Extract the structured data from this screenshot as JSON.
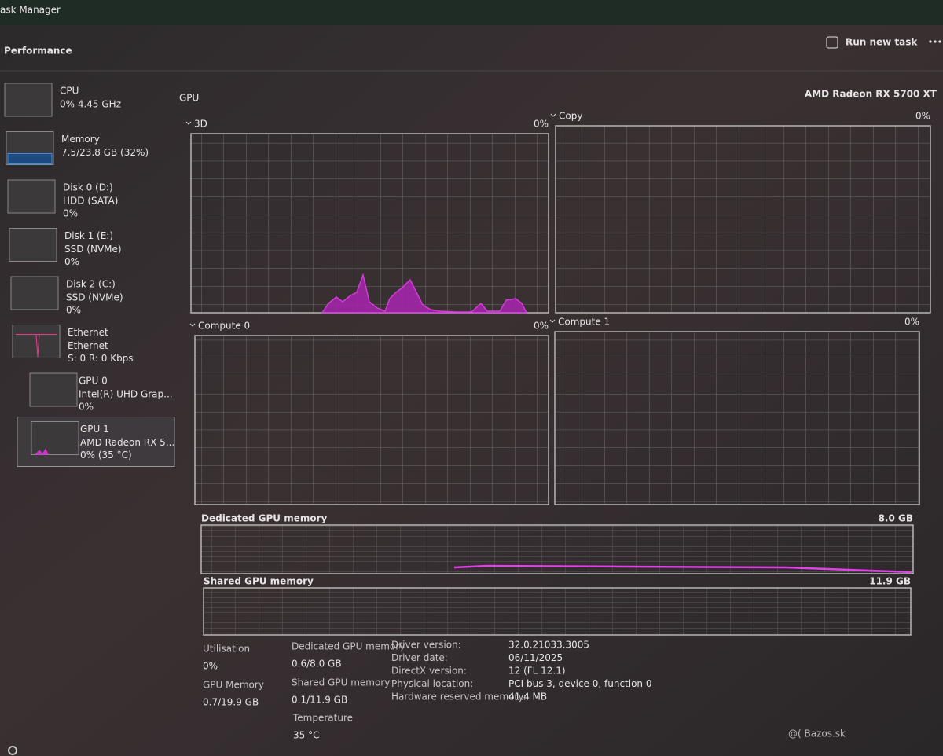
{
  "window": {
    "title": "ask Manager"
  },
  "header": {
    "section": "Performance",
    "run_new_task": "Run new task"
  },
  "sidebar": [
    {
      "name": "CPU",
      "lines": [
        "0% 4.45 GHz"
      ]
    },
    {
      "name": "Memory",
      "lines": [
        "7.5/23.8 GB (32%)"
      ]
    },
    {
      "name": "Disk 0 (D:)",
      "lines": [
        "HDD (SATA)",
        "0%"
      ]
    },
    {
      "name": "Disk 1 (E:)",
      "lines": [
        "SSD (NVMe)",
        "0%"
      ]
    },
    {
      "name": "Disk 2 (C:)",
      "lines": [
        "SSD (NVMe)",
        "0%"
      ]
    },
    {
      "name": "Ethernet",
      "lines": [
        "Ethernet",
        "S: 0 R: 0 Kbps"
      ]
    },
    {
      "name": "GPU 0",
      "lines": [
        "Intel(R) UHD Grap...",
        "0%"
      ]
    },
    {
      "name": "GPU 1",
      "lines": [
        "AMD Radeon RX 5...",
        "0% (35 °C)"
      ]
    }
  ],
  "gpu": {
    "title": "GPU",
    "device": "AMD Radeon RX 5700 XT"
  },
  "graphs": [
    {
      "label": "3D",
      "value": "0%"
    },
    {
      "label": "Copy",
      "value": "0%"
    },
    {
      "label": "Compute 0",
      "value": "0%"
    },
    {
      "label": "Compute 1",
      "value": "0%"
    }
  ],
  "memory_graphs": [
    {
      "label": "Dedicated GPU memory",
      "max": "8.0 GB"
    },
    {
      "label": "Shared GPU memory",
      "max": "11.9 GB"
    }
  ],
  "stats": [
    {
      "label": "Utilisation",
      "value": "0%"
    },
    {
      "label": "GPU Memory",
      "value": "0.7/19.9 GB"
    },
    {
      "label": "Dedicated GPU memory",
      "value": "0.6/8.0 GB"
    },
    {
      "label": "Shared GPU memory",
      "value": "0.1/11.9 GB"
    },
    {
      "label": "Temperature",
      "value": "35 °C"
    }
  ],
  "details": [
    {
      "label": "Driver version:",
      "value": "32.0.21033.3005"
    },
    {
      "label": "Driver date:",
      "value": "06/11/2025"
    },
    {
      "label": "DirectX version:",
      "value": "12 (FL 12.1)"
    },
    {
      "label": "Physical location:",
      "value": "PCI bus 3, device 0, function 0"
    },
    {
      "label": "Hardware reserved memory:",
      "value": "41.4 MB"
    }
  ],
  "watermark": "@( Bazos.sk"
}
